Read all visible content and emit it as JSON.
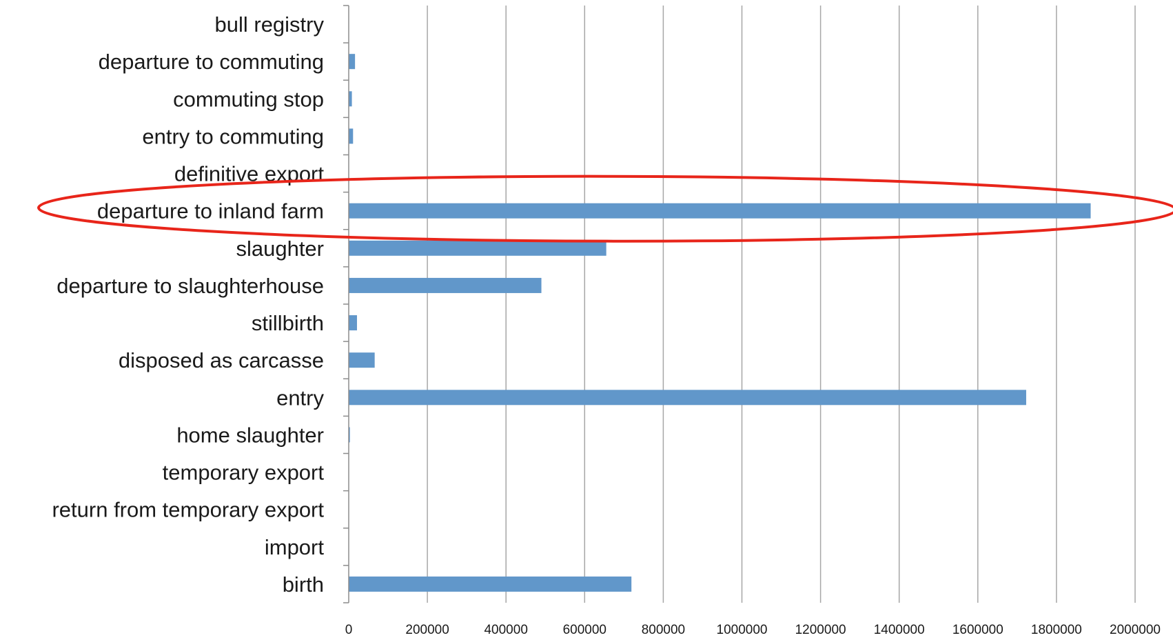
{
  "chart_data": {
    "type": "bar",
    "orientation": "horizontal",
    "title": "",
    "xlabel": "",
    "ylabel": "",
    "xlim": [
      0,
      2000000
    ],
    "x_ticks": [
      0,
      200000,
      400000,
      600000,
      800000,
      1000000,
      1200000,
      1400000,
      1600000,
      1800000,
      2000000
    ],
    "x_tick_labels": [
      "0",
      "200000",
      "400000",
      "600000",
      "800000",
      "1000000",
      "1200000",
      "1400000",
      "1600000",
      "1800000",
      "2000000"
    ],
    "grid": "vertical",
    "legend": "none",
    "categories": [
      "bull registry",
      "departure to commuting",
      "commuting stop",
      "entry to commuting",
      "definitive export",
      "departure to inland farm",
      "slaughter",
      "departure to slaughterhouse",
      "stillbirth",
      "disposed as carcasse",
      "entry",
      "home slaughter ",
      "temporary export",
      "return from temporary export",
      "import",
      "birth"
    ],
    "values": [
      0,
      16000,
      8000,
      11000,
      0,
      1887000,
      655000,
      490000,
      21000,
      66000,
      1723000,
      3000,
      0,
      0,
      0,
      719000
    ],
    "highlighted_category": "departure to inland farm",
    "colors": {
      "bar": "#6197ca",
      "highlight_ellipse": "#e8251a",
      "gridline": "#a6a6a6"
    }
  }
}
